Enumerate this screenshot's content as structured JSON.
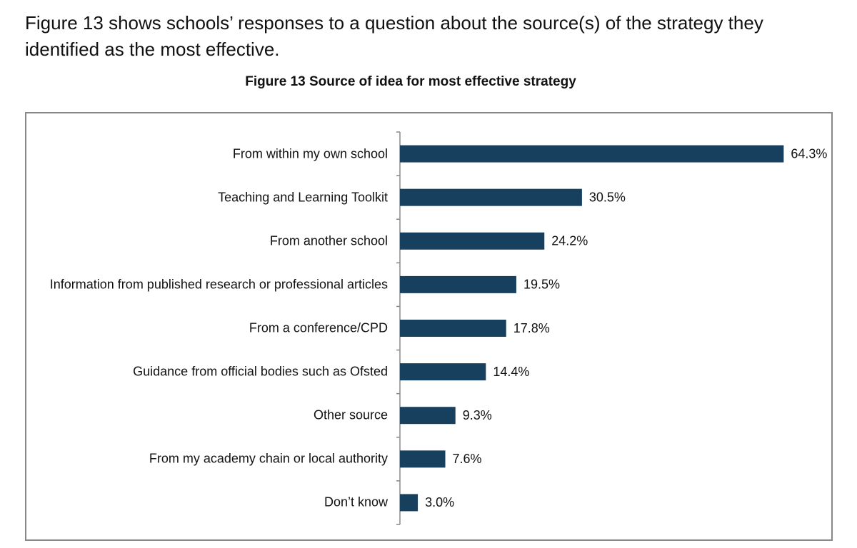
{
  "intro": "Figure 13 shows schools’ responses to a question about the source(s) of the strategy they identified as the most effective.",
  "chart_data": {
    "type": "bar",
    "orientation": "horizontal",
    "title": "Figure 13 Source of idea for most effective strategy",
    "categories": [
      "From within my own school",
      "Teaching and Learning Toolkit",
      "From another school",
      "Information from published research or professional articles",
      "From a conference/CPD",
      "Guidance from official bodies such as Ofsted",
      "Other source",
      "From my academy chain or local authority",
      "Don’t know"
    ],
    "values": [
      64.3,
      30.5,
      24.2,
      19.5,
      17.8,
      14.4,
      9.3,
      7.6,
      3.0
    ],
    "value_labels": [
      "64.3%",
      "30.5%",
      "24.2%",
      "19.5%",
      "17.8%",
      "14.4%",
      "9.3%",
      "7.6%",
      "3.0%"
    ],
    "color": "#17405f",
    "xlim": [
      0,
      70
    ]
  }
}
